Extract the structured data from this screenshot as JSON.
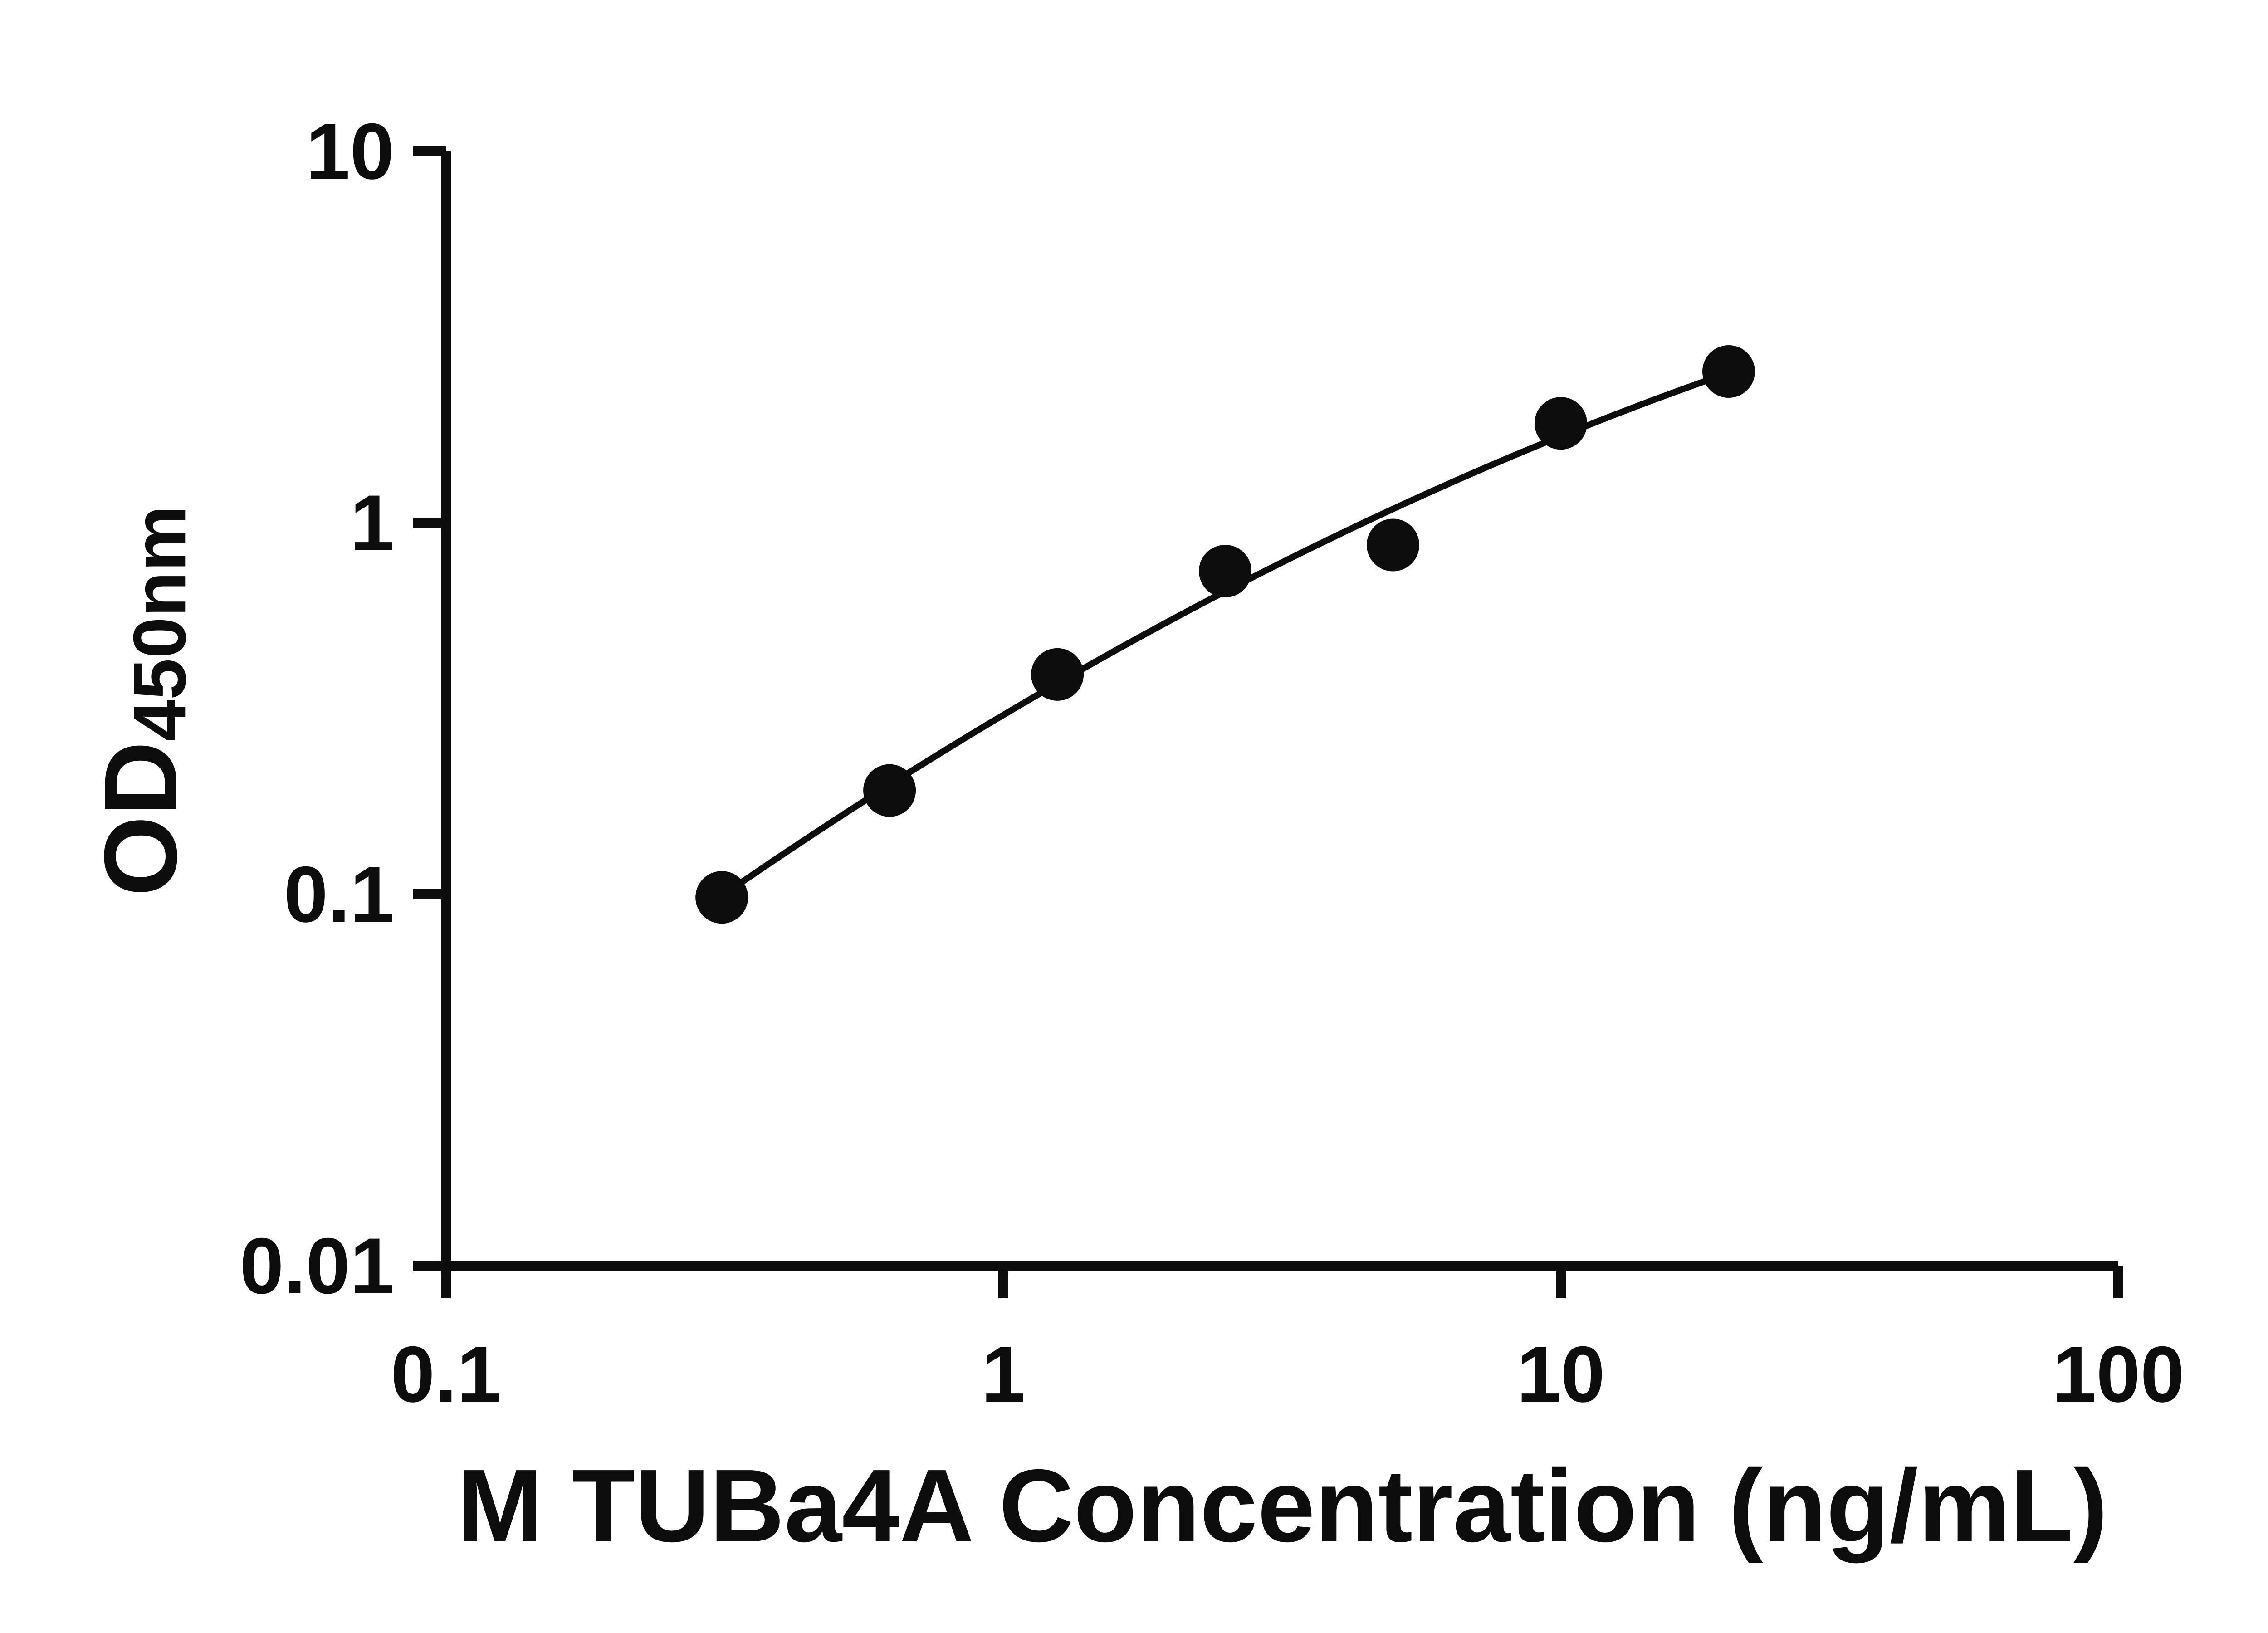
{
  "figure": {
    "background": "#ffffff",
    "ink_color": "#0d0d0d"
  },
  "chart_data": {
    "type": "scatter",
    "title": "",
    "xlabel": "M TUBa4A Concentration (ng/mL)",
    "ylabel": "OD",
    "ylabel_subscript": "450nm",
    "x_scale": "log10",
    "y_scale": "log10",
    "xlim": [
      0.1,
      100
    ],
    "ylim": [
      0.01,
      10
    ],
    "x_ticks": [
      0.1,
      1,
      10,
      100
    ],
    "y_ticks": [
      0.01,
      0.1,
      1,
      10
    ],
    "grid": false,
    "legend": "none",
    "has_fit_curve": true,
    "series": [
      {
        "name": "standard-curve",
        "marker": "filled-circle",
        "color": "#0d0d0d",
        "x": [
          0.3125,
          0.625,
          1.25,
          2.5,
          5,
          10,
          20
        ],
        "y": [
          0.098,
          0.19,
          0.39,
          0.74,
          0.87,
          1.85,
          2.55
        ]
      }
    ]
  }
}
